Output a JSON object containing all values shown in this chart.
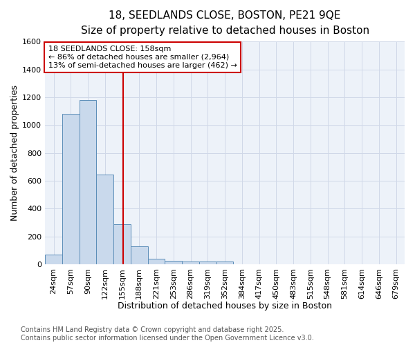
{
  "title_line1": "18, SEEDLANDS CLOSE, BOSTON, PE21 9QE",
  "title_line2": "Size of property relative to detached houses in Boston",
  "xlabel": "Distribution of detached houses by size in Boston",
  "ylabel": "Number of detached properties",
  "bin_labels": [
    "24sqm",
    "57sqm",
    "90sqm",
    "122sqm",
    "155sqm",
    "188sqm",
    "221sqm",
    "253sqm",
    "286sqm",
    "319sqm",
    "352sqm",
    "384sqm",
    "417sqm",
    "450sqm",
    "483sqm",
    "515sqm",
    "548sqm",
    "581sqm",
    "614sqm",
    "646sqm",
    "679sqm"
  ],
  "bin_edges": [
    7.5,
    40.5,
    73.5,
    106.5,
    139.5,
    172.5,
    205.5,
    238.5,
    271.5,
    304.5,
    337.5,
    370.5,
    403.5,
    436.5,
    469.5,
    502.5,
    535.5,
    568.5,
    601.5,
    634.5,
    667.5,
    700.5
  ],
  "bin_values": [
    70,
    1080,
    1180,
    645,
    285,
    130,
    40,
    25,
    20,
    20,
    20,
    0,
    0,
    0,
    0,
    0,
    0,
    0,
    0,
    0,
    0
  ],
  "bar_color": "#c9d9ec",
  "bar_edge_color": "#5b8db8",
  "vline_x": 158,
  "vline_color": "#cc0000",
  "annotation_text": "18 SEEDLANDS CLOSE: 158sqm\n← 86% of detached houses are smaller (2,964)\n13% of semi-detached houses are larger (462) →",
  "annotation_box_color": "#ffffff",
  "annotation_box_edge": "#cc0000",
  "ylim": [
    0,
    1600
  ],
  "yticks": [
    0,
    200,
    400,
    600,
    800,
    1000,
    1200,
    1400,
    1600
  ],
  "grid_color": "#d0d8e8",
  "bg_color": "#ffffff",
  "plot_bg_color": "#edf2f9",
  "footnote": "Contains HM Land Registry data © Crown copyright and database right 2025.\nContains public sector information licensed under the Open Government Licence v3.0.",
  "title_fontsize": 11,
  "subtitle_fontsize": 10,
  "axis_label_fontsize": 9,
  "tick_fontsize": 8,
  "annotation_fontsize": 8,
  "footnote_fontsize": 7
}
